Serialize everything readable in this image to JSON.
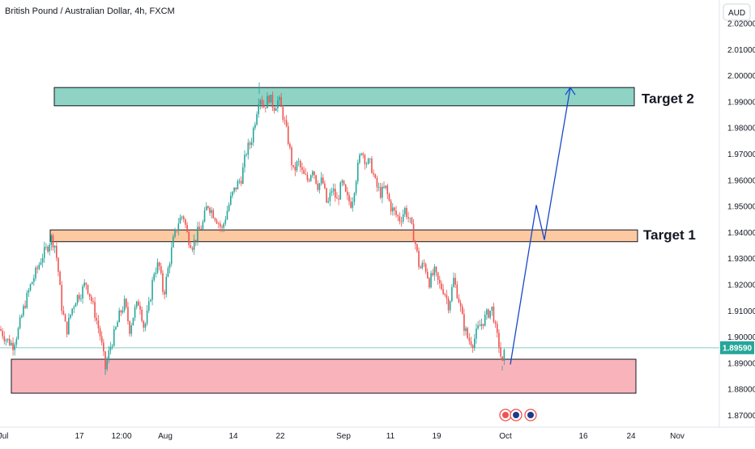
{
  "header": {
    "title": "British Pound / Australian Dollar, 4h, FXCM",
    "currency": "AUD"
  },
  "chart_data": {
    "type": "candlestick",
    "title": "British Pound / Australian Dollar, 4h, FXCM",
    "ylim": [
      1.8655,
      2.029
    ],
    "y_ticks": [
      {
        "label": "2.02000",
        "value": 2.02
      },
      {
        "label": "2.01000",
        "value": 2.01
      },
      {
        "label": "2.00000",
        "value": 2.0
      },
      {
        "label": "1.99000",
        "value": 1.99
      },
      {
        "label": "1.98000",
        "value": 1.98
      },
      {
        "label": "1.97000",
        "value": 1.97
      },
      {
        "label": "1.96000",
        "value": 1.96
      },
      {
        "label": "1.95000",
        "value": 1.95
      },
      {
        "label": "1.94000",
        "value": 1.94
      },
      {
        "label": "1.93000",
        "value": 1.93
      },
      {
        "label": "1.92000",
        "value": 1.92
      },
      {
        "label": "1.91000",
        "value": 1.91
      },
      {
        "label": "1.90000",
        "value": 1.9
      },
      {
        "label": "1.89000",
        "value": 1.89
      },
      {
        "label": "1.88000",
        "value": 1.88
      },
      {
        "label": "1.87000",
        "value": 1.87
      }
    ],
    "x_ticks": [
      "Jul",
      "17",
      "12:00",
      "Aug",
      "14",
      "22",
      "Sep",
      "11",
      "19",
      "Oct",
      "16",
      "24",
      "Nov"
    ],
    "current_price": {
      "label": "1.89590",
      "value": 1.8959
    },
    "price_path": [
      [
        0,
        1.903
      ],
      [
        8,
        1.899
      ],
      [
        16,
        1.897
      ],
      [
        22,
        1.902
      ],
      [
        30,
        1.912
      ],
      [
        38,
        1.92
      ],
      [
        46,
        1.926
      ],
      [
        52,
        1.931
      ],
      [
        58,
        1.934
      ],
      [
        63,
        1.938
      ],
      [
        68,
        1.935
      ],
      [
        72,
        1.925
      ],
      [
        76,
        1.912
      ],
      [
        82,
        1.902
      ],
      [
        88,
        1.91
      ],
      [
        94,
        1.915
      ],
      [
        100,
        1.917
      ],
      [
        106,
        1.921
      ],
      [
        112,
        1.915
      ],
      [
        118,
        1.908
      ],
      [
        124,
        1.9
      ],
      [
        130,
        1.888
      ],
      [
        136,
        1.896
      ],
      [
        142,
        1.902
      ],
      [
        148,
        1.909
      ],
      [
        154,
        1.913
      ],
      [
        160,
        1.903
      ],
      [
        166,
        1.91
      ],
      [
        172,
        1.914
      ],
      [
        178,
        1.903
      ],
      [
        184,
        1.912
      ],
      [
        190,
        1.925
      ],
      [
        196,
        1.928
      ],
      [
        202,
        1.916
      ],
      [
        208,
        1.927
      ],
      [
        214,
        1.937
      ],
      [
        220,
        1.944
      ],
      [
        226,
        1.947
      ],
      [
        232,
        1.938
      ],
      [
        238,
        1.935
      ],
      [
        244,
        1.94
      ],
      [
        250,
        1.943
      ],
      [
        256,
        1.951
      ],
      [
        262,
        1.948
      ],
      [
        268,
        1.945
      ],
      [
        274,
        1.941
      ],
      [
        280,
        1.948
      ],
      [
        286,
        1.954
      ],
      [
        292,
        1.958
      ],
      [
        298,
        1.961
      ],
      [
        304,
        1.971
      ],
      [
        310,
        1.975
      ],
      [
        316,
        1.985
      ],
      [
        320,
        1.993
      ],
      [
        326,
        1.988
      ],
      [
        332,
        1.992
      ],
      [
        338,
        1.988
      ],
      [
        344,
        1.991
      ],
      [
        350,
        1.984
      ],
      [
        356,
        1.975
      ],
      [
        362,
        1.963
      ],
      [
        368,
        1.967
      ],
      [
        374,
        1.962
      ],
      [
        380,
        1.96
      ],
      [
        386,
        1.965
      ],
      [
        392,
        1.958
      ],
      [
        398,
        1.96
      ],
      [
        404,
        1.95
      ],
      [
        410,
        1.957
      ],
      [
        416,
        1.952
      ],
      [
        422,
        1.959
      ],
      [
        428,
        1.953
      ],
      [
        434,
        1.951
      ],
      [
        440,
        1.962
      ],
      [
        446,
        1.972
      ],
      [
        452,
        1.967
      ],
      [
        458,
        1.966
      ],
      [
        464,
        1.958
      ],
      [
        470,
        1.955
      ],
      [
        476,
        1.957
      ],
      [
        482,
        1.95
      ],
      [
        488,
        1.947
      ],
      [
        494,
        1.945
      ],
      [
        500,
        1.949
      ],
      [
        506,
        1.944
      ],
      [
        512,
        1.937
      ],
      [
        518,
        1.926
      ],
      [
        524,
        1.928
      ],
      [
        530,
        1.921
      ],
      [
        536,
        1.925
      ],
      [
        542,
        1.92
      ],
      [
        548,
        1.918
      ],
      [
        554,
        1.912
      ],
      [
        560,
        1.922
      ],
      [
        566,
        1.915
      ],
      [
        572,
        1.905
      ],
      [
        578,
        1.899
      ],
      [
        584,
        1.898
      ],
      [
        590,
        1.903
      ],
      [
        596,
        1.906
      ],
      [
        602,
        1.909
      ],
      [
        608,
        1.911
      ],
      [
        612,
        1.902
      ],
      [
        616,
        1.897
      ],
      [
        620,
        1.889
      ],
      [
        624,
        1.896
      ]
    ],
    "zones": [
      {
        "name": "Target 2",
        "low": 1.9885,
        "high": 1.9955,
        "color": "#8ed3c4"
      },
      {
        "name": "Target 1",
        "low": 1.9365,
        "high": 1.941,
        "color": "#fcc9a0"
      },
      {
        "name": "",
        "low": 1.8785,
        "high": 1.8915,
        "color": "#f9b4bb"
      }
    ],
    "targets": [
      "Target 2",
      "Target 1"
    ],
    "projection": [
      [
        630,
        1.8895
      ],
      [
        662,
        1.9505
      ],
      [
        672,
        1.9372
      ],
      [
        704,
        1.9955
      ]
    ],
    "colors": {
      "up": "#26a69a",
      "down": "#ef5350",
      "projection": "#1848c8",
      "price_badge": "#26a69a",
      "price_line": "#80cbc4"
    }
  }
}
